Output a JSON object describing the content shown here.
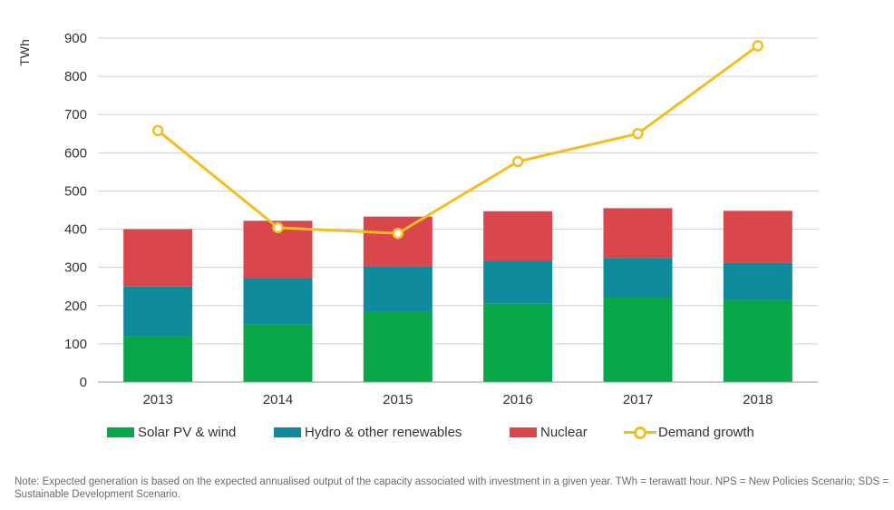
{
  "colors": {
    "solar": "#0aa64a",
    "hydro": "#0e8a9c",
    "nuclear": "#d9464b",
    "demand": "#f5bd1f",
    "grid": "#d0d0d0"
  },
  "legend": {
    "solar": "Solar PV & wind",
    "hydro": "Hydro & other renewables",
    "nuclear": "Nuclear",
    "demand": "Demand growth"
  },
  "note": "Note: Expected generation is based on the expected annualised output of the capacity associated with investment in a given year. TWh = terawatt hour. NPS = New Policies Scenario; SDS = Sustainable Development Scenario.",
  "chart_data": {
    "type": "bar",
    "stacked": true,
    "ylabel": "TWh",
    "xlabel": "",
    "ylim": [
      0,
      900
    ],
    "yticks": [
      0,
      100,
      200,
      300,
      400,
      500,
      600,
      700,
      800,
      900
    ],
    "grid": true,
    "legend_position": "bottom",
    "categories": [
      "2013",
      "2014",
      "2015",
      "2016",
      "2017",
      "2018"
    ],
    "series": [
      {
        "name": "Solar PV & wind",
        "type": "bar",
        "color_key": "solar",
        "values": [
          120,
          150,
          183,
          205,
          222,
          215
        ]
      },
      {
        "name": "Hydro & other renewables",
        "type": "bar",
        "color_key": "hydro",
        "values": [
          130,
          122,
          120,
          112,
          103,
          97
        ]
      },
      {
        "name": "Nuclear",
        "type": "bar",
        "color_key": "nuclear",
        "values": [
          150,
          150,
          130,
          130,
          130,
          136
        ]
      },
      {
        "name": "Demand growth",
        "type": "line",
        "color_key": "demand",
        "values": [
          658,
          404,
          389,
          577,
          650,
          880
        ]
      }
    ]
  }
}
